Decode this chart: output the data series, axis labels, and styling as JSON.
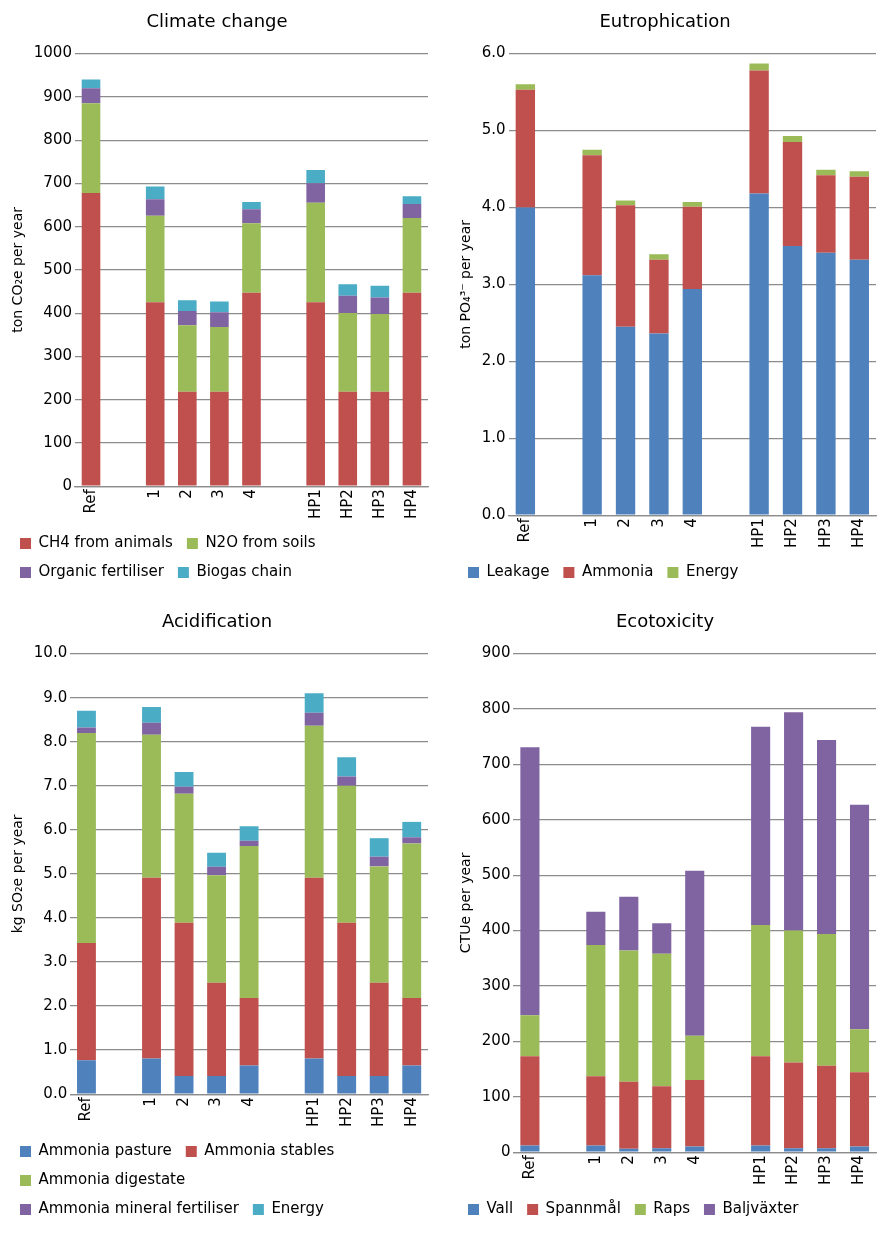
{
  "chart_data": [
    {
      "type": "bar",
      "title": "Climate change",
      "ylabel": "ton CO₂e per year",
      "stacked": true,
      "grid": "y",
      "legend": "bottom",
      "categories": [
        "Ref",
        null,
        "1",
        "2",
        "3",
        "4",
        null,
        "HP1",
        "HP2",
        "HP3",
        "HP4"
      ],
      "ylim": [
        0,
        1000
      ],
      "yticks": [
        0,
        100,
        200,
        300,
        400,
        500,
        600,
        700,
        800,
        900,
        1000
      ],
      "series": [
        {
          "name": "CH4 from animals",
          "color": "#c0504d",
          "values": [
            678,
            null,
            425,
            218,
            218,
            447,
            null,
            425,
            218,
            218,
            447
          ]
        },
        {
          "name": "N2O from soils",
          "color": "#9bbb59",
          "values": [
            207,
            null,
            200,
            154,
            150,
            161,
            null,
            230,
            182,
            180,
            173
          ]
        },
        {
          "name": "Organic fertiliser",
          "color": "#8064a2",
          "values": [
            35,
            null,
            38,
            33,
            34,
            32,
            null,
            45,
            40,
            38,
            32
          ]
        },
        {
          "name": "Biogas chain",
          "color": "#4bacc6",
          "values": [
            20,
            null,
            30,
            25,
            25,
            17,
            null,
            31,
            27,
            27,
            18
          ]
        }
      ]
    },
    {
      "type": "bar",
      "title": "Eutrophication",
      "ylabel": "ton PO₄³⁻ per year",
      "stacked": true,
      "grid": "y",
      "legend": "bottom",
      "categories": [
        "Ref",
        null,
        "1",
        "2",
        "3",
        "4",
        null,
        "HP1",
        "HP2",
        "HP3",
        "HP4"
      ],
      "ylim": [
        0,
        6
      ],
      "yticks": [
        {
          "value": 0,
          "label": "0.0"
        },
        {
          "value": 1,
          "label": "1.0"
        },
        {
          "value": 2,
          "label": "2.0"
        },
        {
          "value": 3,
          "label": "3.0"
        },
        {
          "value": 4,
          "label": "4.0"
        },
        {
          "value": 5,
          "label": "5.0"
        },
        {
          "value": 6,
          "label": "6.0"
        }
      ],
      "series": [
        {
          "name": "Leakage",
          "color": "#4f81bd",
          "values": [
            4.0,
            null,
            3.12,
            2.45,
            2.36,
            2.94,
            null,
            4.18,
            3.5,
            3.41,
            3.32
          ]
        },
        {
          "name": "Ammonia",
          "color": "#c0504d",
          "values": [
            1.53,
            null,
            1.56,
            1.58,
            0.96,
            1.07,
            null,
            1.6,
            1.35,
            1.01,
            1.08
          ]
        },
        {
          "name": "Energy",
          "color": "#9bbb59",
          "values": [
            0.07,
            null,
            0.07,
            0.06,
            0.07,
            0.06,
            null,
            0.09,
            0.08,
            0.07,
            0.07
          ]
        }
      ]
    },
    {
      "type": "bar",
      "title": "Acidification",
      "ylabel": "kg SO₂e per year",
      "stacked": true,
      "grid": "y",
      "legend": "bottom",
      "categories": [
        "Ref",
        null,
        "1",
        "2",
        "3",
        "4",
        null,
        "HP1",
        "HP2",
        "HP3",
        "HP4"
      ],
      "ylim": [
        0,
        10
      ],
      "yticks": [
        {
          "value": 0,
          "label": "0.0"
        },
        {
          "value": 1,
          "label": "1.0"
        },
        {
          "value": 2,
          "label": "2.0"
        },
        {
          "value": 3,
          "label": "3.0"
        },
        {
          "value": 4,
          "label": "4.0"
        },
        {
          "value": 5,
          "label": "5.0"
        },
        {
          "value": 6,
          "label": "6.0"
        },
        {
          "value": 7,
          "label": "7.0"
        },
        {
          "value": 8,
          "label": "8.0"
        },
        {
          "value": 9,
          "label": "9.0"
        },
        {
          "value": 10,
          "label": "10.0"
        }
      ],
      "series": [
        {
          "name": "Ammonia pasture",
          "color": "#4f81bd",
          "values": [
            0.77,
            null,
            0.81,
            0.41,
            0.41,
            0.65,
            null,
            0.81,
            0.41,
            0.41,
            0.65
          ]
        },
        {
          "name": "Ammonia stables",
          "color": "#c0504d",
          "values": [
            2.66,
            null,
            4.1,
            3.48,
            2.12,
            1.53,
            null,
            4.1,
            3.48,
            2.12,
            1.53
          ]
        },
        {
          "name": "Ammonia digestate",
          "color": "#9bbb59",
          "values": [
            4.77,
            null,
            3.25,
            2.93,
            2.44,
            3.45,
            null,
            3.45,
            3.11,
            2.64,
            3.51
          ]
        },
        {
          "name": "Ammonia mineral fertiliser",
          "color": "#8064a2",
          "values": [
            0.12,
            null,
            0.27,
            0.16,
            0.19,
            0.12,
            null,
            0.3,
            0.21,
            0.22,
            0.14
          ]
        },
        {
          "name": "Energy",
          "color": "#4bacc6",
          "values": [
            0.38,
            null,
            0.36,
            0.33,
            0.32,
            0.33,
            null,
            0.44,
            0.44,
            0.42,
            0.35
          ]
        }
      ]
    },
    {
      "type": "bar",
      "title": "Ecotoxicity",
      "ylabel": "CTUe per year",
      "stacked": true,
      "grid": "y",
      "legend": "bottom",
      "categories": [
        "Ref",
        null,
        "1",
        "2",
        "3",
        "4",
        null,
        "HP1",
        "HP2",
        "HP3",
        "HP4"
      ],
      "ylim": [
        0,
        900
      ],
      "yticks": [
        0,
        100,
        200,
        300,
        400,
        500,
        600,
        700,
        800,
        900
      ],
      "series": [
        {
          "name": "Vall",
          "color": "#4f81bd",
          "values": [
            12,
            null,
            12,
            6,
            7,
            10,
            null,
            12,
            7,
            7,
            10
          ]
        },
        {
          "name": "Spannmål",
          "color": "#c0504d",
          "values": [
            161,
            null,
            125,
            121,
            112,
            120,
            null,
            161,
            155,
            149,
            134
          ]
        },
        {
          "name": "Raps",
          "color": "#9bbb59",
          "values": [
            74,
            null,
            237,
            237,
            239,
            80,
            null,
            237,
            238,
            238,
            78
          ]
        },
        {
          "name": "Baljväxter",
          "color": "#8064a2",
          "values": [
            484,
            null,
            60,
            97,
            55,
            298,
            null,
            358,
            394,
            350,
            405
          ]
        }
      ]
    }
  ]
}
